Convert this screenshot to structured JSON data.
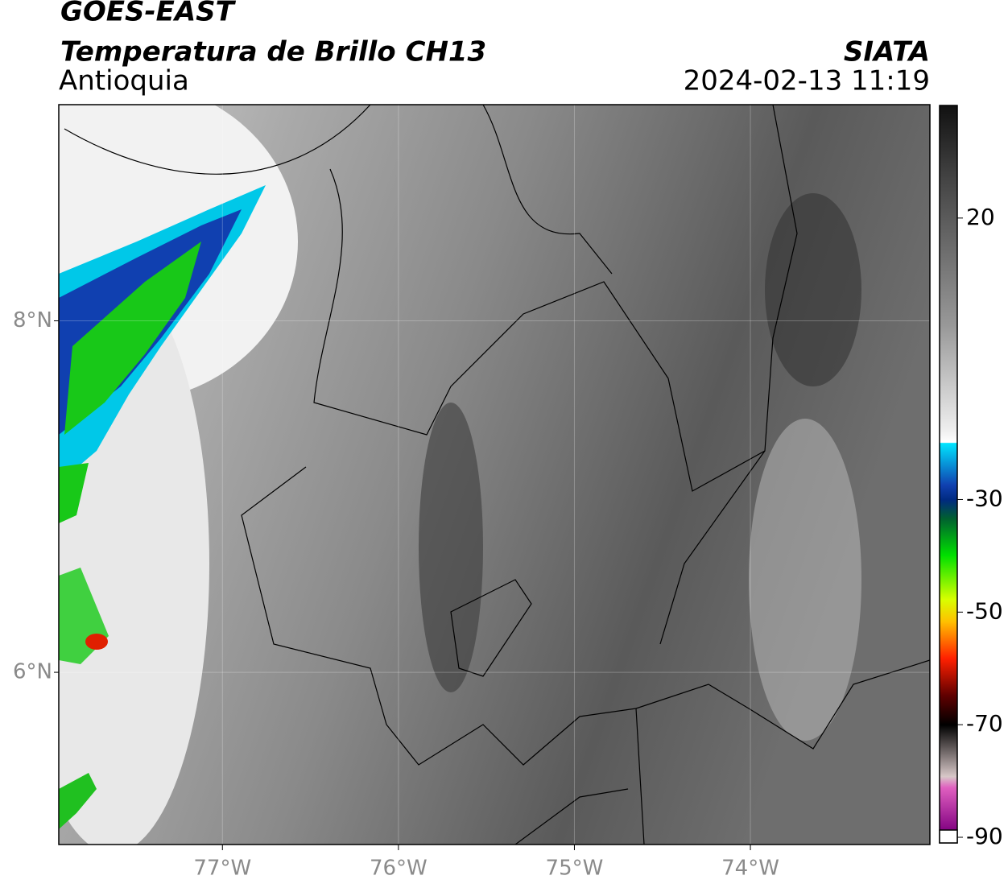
{
  "header": {
    "title": "GOES-EAST",
    "subtitle": "Temperatura de Brillo CH13",
    "region": "Antioquia",
    "source": "SIATA",
    "datetime": "2024-02-13 11:19"
  },
  "map": {
    "xlim": [
      -77.93,
      -72.98
    ],
    "ylim": [
      5.02,
      9.23
    ],
    "xticks": [
      {
        "value": -77,
        "label": "77°W"
      },
      {
        "value": -76,
        "label": "76°W"
      },
      {
        "value": -75,
        "label": "75°W"
      },
      {
        "value": -74,
        "label": "74°W"
      }
    ],
    "yticks": [
      {
        "value": 8,
        "label": "8°N"
      },
      {
        "value": 6,
        "label": "6°N"
      }
    ],
    "grid": true
  },
  "colorbar": {
    "lim": [
      -91,
      40
    ],
    "ticks": [
      20,
      -30,
      -50,
      -70,
      -90
    ]
  }
}
